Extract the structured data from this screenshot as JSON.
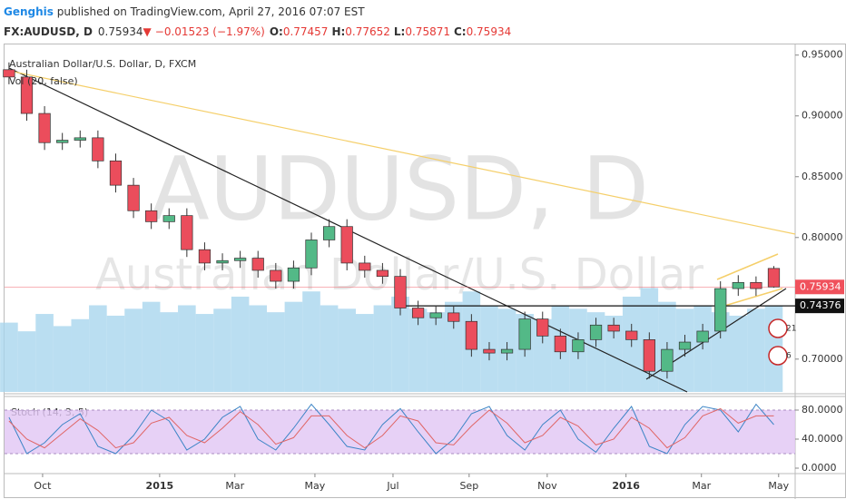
{
  "header": {
    "author": "Genghis",
    "published": " published on TradingView.com, April 27, 2016 07:07 EST",
    "symbol": "FX:AUDUSD, D",
    "price": "0.75934",
    "arrow": "▼",
    "change": "−0.01523 (−1.97%)",
    "ohlc": [
      {
        "k": "O:",
        "v": "0.77457"
      },
      {
        "k": "H:",
        "v": "0.77652"
      },
      {
        "k": "L:",
        "v": "0.75871"
      },
      {
        "k": "C:",
        "v": "0.75934"
      }
    ]
  },
  "chart_data": {
    "type": "candlestick",
    "title": "Australian Dollar/U.S. Dollar, D, FXCM",
    "watermark": "AUDUSD, D",
    "watermark_subtitle": "Australian Dollar/U.S. Dollar",
    "open": [
      0.938,
      0.932,
      0.902,
      0.878,
      0.88,
      0.882,
      0.863,
      0.843,
      0.822,
      0.813,
      0.818,
      0.79,
      0.779,
      0.781,
      0.783,
      0.773,
      0.764,
      0.775,
      0.798,
      0.809,
      0.779,
      0.773,
      0.768,
      0.742,
      0.734,
      0.738,
      0.731,
      0.708,
      0.705,
      0.708,
      0.733,
      0.719,
      0.706,
      0.716,
      0.728,
      0.723,
      0.716,
      0.69,
      0.708,
      0.714,
      0.723,
      0.758,
      0.763,
      0.77457
    ],
    "high": [
      0.944,
      0.938,
      0.908,
      0.886,
      0.888,
      0.888,
      0.869,
      0.849,
      0.828,
      0.824,
      0.824,
      0.796,
      0.787,
      0.789,
      0.789,
      0.779,
      0.781,
      0.804,
      0.815,
      0.815,
      0.785,
      0.779,
      0.774,
      0.748,
      0.744,
      0.744,
      0.737,
      0.714,
      0.714,
      0.739,
      0.739,
      0.725,
      0.722,
      0.734,
      0.734,
      0.729,
      0.722,
      0.714,
      0.72,
      0.729,
      0.764,
      0.769,
      0.768,
      0.77652
    ],
    "low": [
      0.926,
      0.896,
      0.872,
      0.872,
      0.874,
      0.857,
      0.837,
      0.816,
      0.807,
      0.807,
      0.784,
      0.773,
      0.773,
      0.775,
      0.767,
      0.758,
      0.758,
      0.769,
      0.792,
      0.773,
      0.767,
      0.762,
      0.736,
      0.728,
      0.728,
      0.725,
      0.702,
      0.699,
      0.699,
      0.702,
      0.713,
      0.7,
      0.7,
      0.71,
      0.717,
      0.71,
      0.684,
      0.684,
      0.702,
      0.708,
      0.717,
      0.752,
      0.752,
      0.75871
    ],
    "close": [
      0.932,
      0.902,
      0.878,
      0.88,
      0.882,
      0.863,
      0.843,
      0.822,
      0.813,
      0.818,
      0.79,
      0.779,
      0.781,
      0.783,
      0.773,
      0.764,
      0.775,
      0.798,
      0.809,
      0.779,
      0.773,
      0.768,
      0.742,
      0.734,
      0.738,
      0.731,
      0.708,
      0.705,
      0.708,
      0.733,
      0.719,
      0.706,
      0.716,
      0.728,
      0.723,
      0.716,
      0.69,
      0.708,
      0.714,
      0.723,
      0.758,
      0.763,
      0.758,
      0.75934
    ],
    "up_color": "#53b987",
    "down_color": "#eb4d5c",
    "ylim": [
      0.673,
      0.958
    ],
    "yticks": [
      {
        "value": 0.7,
        "label": "0.70000"
      },
      {
        "value": 0.8,
        "label": "0.80000"
      },
      {
        "value": 0.85,
        "label": "0.85000"
      },
      {
        "value": 0.9,
        "label": "0.90000"
      },
      {
        "value": 0.95,
        "label": "0.95000"
      }
    ],
    "xlim": [
      -0.25,
      44.2
    ],
    "xticks": [
      {
        "value": 1.89,
        "label": "Oct"
      },
      {
        "value": 8.47,
        "label": "2015"
      },
      {
        "value": 12.7,
        "label": "Mar"
      },
      {
        "value": 17.2,
        "label": "May"
      },
      {
        "value": 21.59,
        "label": "Jul"
      },
      {
        "value": 25.87,
        "label": "Sep"
      },
      {
        "value": 30.26,
        "label": "Nov"
      },
      {
        "value": 34.69,
        "label": "2016"
      },
      {
        "value": 38.93,
        "label": "Mar"
      },
      {
        "value": 43.27,
        "label": "May"
      }
    ],
    "last_price": 0.75934,
    "last_color": "#f0515c",
    "level": 0.74376,
    "volume": {
      "name": "Vol (20, false)",
      "color": "#a9d6ee",
      "lim": [
        0,
        200
      ],
      "values": [
        40,
        35,
        45,
        38,
        42,
        50,
        44,
        48,
        52,
        46,
        50,
        45,
        48,
        55,
        50,
        46,
        52,
        58,
        50,
        48,
        45,
        50,
        55,
        48,
        46,
        52,
        58,
        50,
        48,
        45,
        42,
        50,
        48,
        46,
        44,
        55,
        60,
        52,
        48,
        50,
        46,
        44,
        48,
        50
      ]
    },
    "stoch": {
      "name": "Stoch (14, 3, 5)",
      "ylim": [
        -7.5,
        97.5
      ],
      "band": [
        20,
        80
      ],
      "yticks": [
        {
          "value": 0,
          "label": "0.0000"
        },
        {
          "value": 40,
          "label": "40.0000"
        },
        {
          "value": 80,
          "label": "80.0000"
        }
      ],
      "k_color": "#3d85c6",
      "d_color": "#e06666",
      "k": [
        70,
        20,
        35,
        60,
        75,
        30,
        20,
        45,
        80,
        65,
        25,
        40,
        70,
        85,
        40,
        25,
        55,
        88,
        60,
        30,
        25,
        60,
        82,
        50,
        20,
        40,
        75,
        85,
        45,
        25,
        60,
        80,
        40,
        22,
        55,
        85,
        30,
        20,
        60,
        85,
        80,
        50,
        88,
        60
      ],
      "d": [
        65,
        40,
        28,
        48,
        68,
        52,
        28,
        35,
        62,
        70,
        45,
        35,
        55,
        78,
        60,
        33,
        42,
        72,
        72,
        45,
        28,
        45,
        72,
        65,
        35,
        32,
        58,
        80,
        62,
        35,
        45,
        70,
        58,
        32,
        40,
        70,
        55,
        28,
        42,
        72,
        82,
        62,
        72,
        72
      ]
    },
    "event_badges": [
      "21",
      "6"
    ]
  }
}
